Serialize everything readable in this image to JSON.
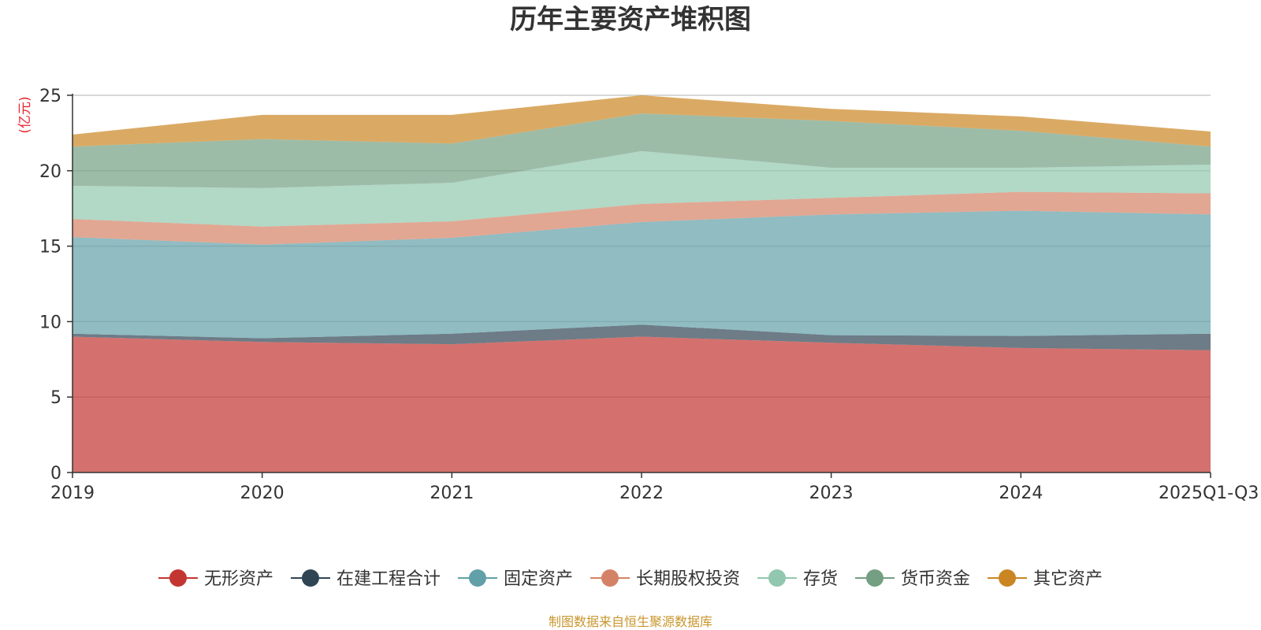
{
  "chart_data": {
    "type": "area",
    "stacked": true,
    "title": "历年主要资产堆积图",
    "ylabel": "(亿元)",
    "source": "制图数据来自恒生聚源数据库",
    "categories": [
      "2019",
      "2020",
      "2021",
      "2022",
      "2023",
      "2024",
      "2025Q1-Q3"
    ],
    "ylim": [
      0,
      25
    ],
    "yticks": [
      0,
      5,
      10,
      15,
      20,
      25
    ],
    "grid": true,
    "legend_position": "bottom",
    "series": [
      {
        "name": "无形资产",
        "color": "#c23531",
        "values": [
          9.0,
          8.65,
          8.5,
          9.0,
          8.6,
          8.25,
          8.1
        ]
      },
      {
        "name": "在建工程合计",
        "color": "#2f4554",
        "values": [
          0.2,
          0.25,
          0.7,
          0.8,
          0.5,
          0.8,
          1.1
        ]
      },
      {
        "name": "固定资产",
        "color": "#61a0a8",
        "values": [
          6.4,
          6.2,
          6.35,
          6.8,
          8.0,
          8.3,
          7.9
        ]
      },
      {
        "name": "长期股权投资",
        "color": "#d48265",
        "values": [
          1.2,
          1.2,
          1.1,
          1.2,
          1.1,
          1.25,
          1.4
        ]
      },
      {
        "name": "存货",
        "color": "#91c7ae",
        "values": [
          2.2,
          2.55,
          2.55,
          3.5,
          2.0,
          1.6,
          1.9
        ]
      },
      {
        "name": "货币资金",
        "color": "#749f83",
        "values": [
          2.6,
          3.25,
          2.6,
          2.5,
          3.1,
          2.45,
          1.2
        ]
      },
      {
        "name": "其它资产",
        "color": "#ca8622",
        "values": [
          0.8,
          1.6,
          1.9,
          1.2,
          0.8,
          0.95,
          1.0
        ]
      }
    ]
  }
}
